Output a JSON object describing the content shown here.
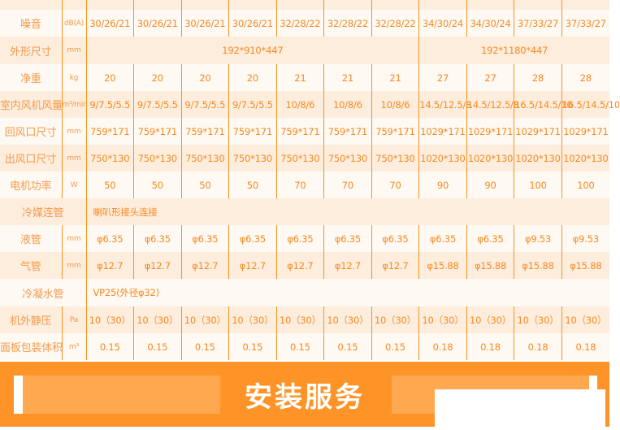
{
  "colors": {
    "accent": "#fe9427",
    "text": "#f7891f",
    "row_light": "#fef9f3",
    "row_dark": "#fdeddd"
  },
  "rows": [
    {
      "label": "",
      "unit": "",
      "values": [
        "",
        "",
        "",
        "",
        "",
        "",
        "",
        "",
        "",
        "",
        ""
      ]
    },
    {
      "label": "噪音",
      "unit": "dB(A)",
      "values": [
        "30/26/21",
        "30/26/21",
        "30/26/21",
        "30/26/21",
        "32/28/22",
        "32/28/22",
        "32/28/22",
        "34/30/24",
        "34/30/24",
        "37/33/27",
        "37/33/27"
      ]
    },
    {
      "label": "外形尺寸",
      "unit": "mm",
      "merged": [
        "192*910*447",
        "192*1180*447"
      ]
    },
    {
      "label": "净重",
      "unit": "kg",
      "values": [
        "20",
        "20",
        "20",
        "20",
        "21",
        "21",
        "21",
        "27",
        "27",
        "28",
        "28"
      ]
    },
    {
      "label": "室内风机风量",
      "unit": "m³/min",
      "values": [
        "9/7.5/5.5",
        "9/7.5/5.5",
        "9/7.5/5.5",
        "9/7.5/5.5",
        "10/8/6",
        "10/8/6",
        "10/8/6",
        "14.5/12.5/8",
        "14.5/12.5/8",
        "16.5/14.5/10",
        "16.5/14.5/10"
      ]
    },
    {
      "label": "回风口尺寸",
      "unit": "mm",
      "values": [
        "759*171",
        "759*171",
        "759*171",
        "759*171",
        "759*171",
        "759*171",
        "759*171",
        "1029*171",
        "1029*171",
        "1029*171",
        "1029*171"
      ]
    },
    {
      "label": "出风口尺寸",
      "unit": "mm",
      "values": [
        "750*130",
        "750*130",
        "750*130",
        "750*130",
        "750*130",
        "750*130",
        "750*130",
        "1020*130",
        "1020*130",
        "1020*130",
        "1020*130"
      ]
    },
    {
      "label": "电机功率",
      "unit": "W",
      "values": [
        "50",
        "50",
        "50",
        "50",
        "70",
        "70",
        "70",
        "90",
        "90",
        "100",
        "100"
      ]
    },
    {
      "label": "冷媒连管",
      "full": "喇叭形接头连接"
    },
    {
      "label": "液管",
      "unit": "mm",
      "values": [
        "φ6.35",
        "φ6.35",
        "φ6.35",
        "φ6.35",
        "φ6.35",
        "φ6.35",
        "φ6.35",
        "φ6.35",
        "φ6.35",
        "φ9.53",
        "φ9.53"
      ]
    },
    {
      "label": "气管",
      "unit": "mm",
      "values": [
        "φ12.7",
        "φ12.7",
        "φ12.7",
        "φ12.7",
        "φ12.7",
        "φ12.7",
        "φ12.7",
        "φ15.88",
        "φ15.88",
        "φ15.88",
        "φ15.88"
      ]
    },
    {
      "label": "冷凝水管",
      "full": "VP25(外径φ32)"
    },
    {
      "label": "机外静压",
      "unit": "Pa",
      "values": [
        "10（30）",
        "10（30）",
        "10（30）",
        "10（30）",
        "10（30）",
        "10（30）",
        "10（30）",
        "10（30）",
        "10（30）",
        "10（30）",
        "10（30）"
      ]
    },
    {
      "label": "面板包装体积",
      "unit": "m³",
      "values": [
        "0.15",
        "0.15",
        "0.15",
        "0.15",
        "0.15",
        "0.15",
        "0.15",
        "0.18",
        "0.18",
        "0.18",
        "0.18"
      ]
    }
  ],
  "banner": {
    "title": "安装服务"
  }
}
